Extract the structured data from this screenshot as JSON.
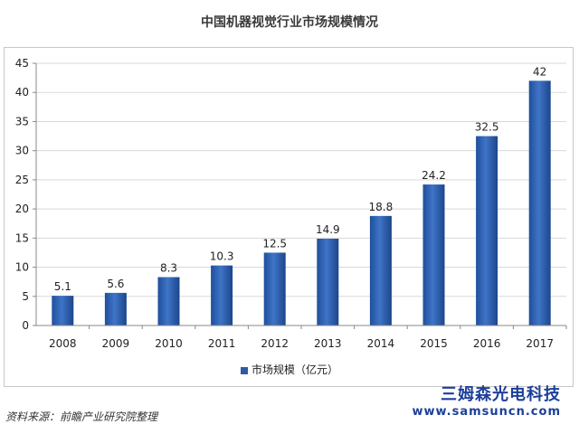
{
  "chart_data": {
    "type": "bar",
    "title": "中国机器视觉行业市场规模情况",
    "categories": [
      "2008",
      "2009",
      "2010",
      "2011",
      "2012",
      "2013",
      "2014",
      "2015",
      "2016",
      "2017"
    ],
    "series": [
      {
        "name": "市场规模（亿元）",
        "values": [
          5.1,
          5.6,
          8.3,
          10.3,
          12.5,
          14.9,
          18.8,
          24.2,
          32.5,
          42
        ]
      }
    ],
    "data_labels": [
      "5.1",
      "5.6",
      "8.3",
      "10.3",
      "12.5",
      "14.9",
      "18.8",
      "24.2",
      "32.5",
      "42"
    ],
    "ylim": [
      0,
      45
    ],
    "yticks": [
      "0",
      "5",
      "10",
      "15",
      "20",
      "25",
      "30",
      "35",
      "40",
      "45"
    ],
    "ytick_values": [
      0,
      5,
      10,
      15,
      20,
      25,
      30,
      35,
      40,
      45
    ],
    "xlabel": "",
    "ylabel": "",
    "grid": true,
    "legend_position": "bottom",
    "bar_color": "#2d5aa8"
  },
  "source_note": "资料来源：前瞻产业研究院整理",
  "watermark": {
    "name": "三姆森光电科技",
    "url": "www.samsuncn.com"
  }
}
